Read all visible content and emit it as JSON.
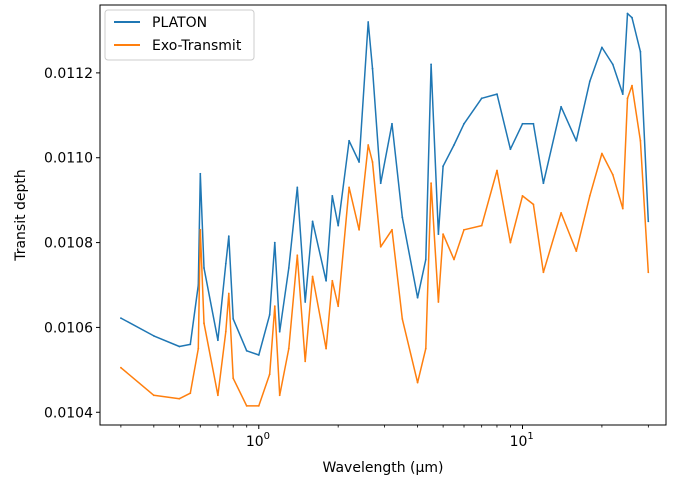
{
  "chart_data": {
    "type": "line",
    "title": "",
    "xlabel": "Wavelength (μm)",
    "ylabel": "Transit depth",
    "xscale": "log",
    "xlim": [
      0.25,
      35
    ],
    "ylim": [
      0.01037,
      0.01136
    ],
    "grid": false,
    "legend_position": "top-left",
    "x_ticks": [
      {
        "value": 1,
        "label": "10",
        "exponent": "0"
      },
      {
        "value": 10,
        "label": "10",
        "exponent": "1"
      }
    ],
    "y_ticks": [
      {
        "value": 0.0104,
        "label": "0.0104"
      },
      {
        "value": 0.0106,
        "label": "0.0106"
      },
      {
        "value": 0.0108,
        "label": "0.0108"
      },
      {
        "value": 0.011,
        "label": "0.0110"
      },
      {
        "value": 0.0112,
        "label": "0.0112"
      }
    ],
    "x": [
      0.3,
      0.4,
      0.5,
      0.55,
      0.59,
      0.6,
      0.62,
      0.7,
      0.75,
      0.77,
      0.8,
      0.9,
      1.0,
      1.1,
      1.15,
      1.2,
      1.3,
      1.4,
      1.5,
      1.6,
      1.8,
      1.9,
      2.0,
      2.2,
      2.4,
      2.6,
      2.7,
      2.9,
      3.2,
      3.5,
      4.0,
      4.3,
      4.5,
      4.8,
      5.0,
      5.5,
      6.0,
      7.0,
      8.0,
      9.0,
      10.0,
      11.0,
      12.0,
      14.0,
      16.0,
      18.0,
      20.0,
      22.0,
      24.0,
      25.0,
      26.0,
      28.0,
      30.0
    ],
    "series": [
      {
        "name": "PLATON",
        "color": "#1f77b4",
        "y": [
          0.010622,
          0.01058,
          0.010555,
          0.01056,
          0.0107,
          0.010962,
          0.01074,
          0.01057,
          0.01075,
          0.010815,
          0.01062,
          0.010545,
          0.010535,
          0.01063,
          0.0108,
          0.01059,
          0.01074,
          0.01093,
          0.01066,
          0.01085,
          0.01071,
          0.01091,
          0.01084,
          0.01104,
          0.01099,
          0.01132,
          0.01121,
          0.01094,
          0.01108,
          0.01086,
          0.01067,
          0.01076,
          0.01122,
          0.01082,
          0.01098,
          0.01103,
          0.01108,
          0.01114,
          0.01115,
          0.01102,
          0.01108,
          0.01108,
          0.01094,
          0.01112,
          0.01104,
          0.01118,
          0.01126,
          0.01122,
          0.01115,
          0.01134,
          0.01133,
          0.01125,
          0.01085
        ]
      },
      {
        "name": "Exo-Transmit",
        "color": "#ff7f0e",
        "y": [
          0.010505,
          0.01044,
          0.010432,
          0.010445,
          0.01055,
          0.01083,
          0.01061,
          0.01044,
          0.01059,
          0.01068,
          0.01048,
          0.010415,
          0.010415,
          0.01049,
          0.01065,
          0.01044,
          0.01055,
          0.01077,
          0.01052,
          0.01072,
          0.01055,
          0.01071,
          0.01065,
          0.01093,
          0.01083,
          0.01103,
          0.01099,
          0.01079,
          0.01083,
          0.01062,
          0.01047,
          0.01055,
          0.01094,
          0.01066,
          0.01082,
          0.01076,
          0.01083,
          0.01084,
          0.01097,
          0.0108,
          0.01091,
          0.01089,
          0.01073,
          0.01087,
          0.01078,
          0.01091,
          0.01101,
          0.01096,
          0.01088,
          0.01114,
          0.01117,
          0.01104,
          0.01073
        ]
      }
    ]
  }
}
